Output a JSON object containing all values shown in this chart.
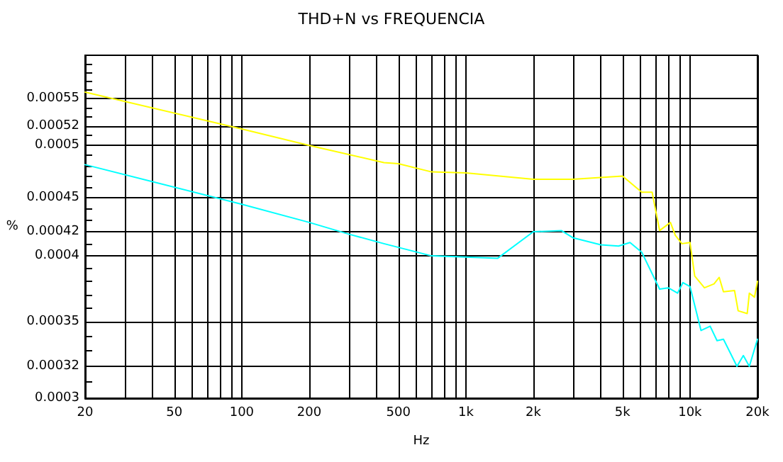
{
  "chart_data": {
    "type": "line",
    "title": "THD+N vs FREQUENCIA",
    "xlabel": "Hz",
    "ylabel": "%",
    "log": "xy",
    "grid": true,
    "marker": "none",
    "line_style": "solid",
    "xlim": [
      20,
      20000
    ],
    "xticks": [
      20,
      {
        "value": 30,
        "label": null
      },
      {
        "value": 40,
        "label": null
      },
      50,
      {
        "value": 60,
        "label": null
      },
      {
        "value": 70,
        "label": null
      },
      {
        "value": 80,
        "label": null
      },
      {
        "value": 90,
        "label": null
      },
      100,
      200,
      {
        "value": 300,
        "label": null
      },
      {
        "value": 400,
        "label": null
      },
      500,
      {
        "value": 600,
        "label": null
      },
      {
        "value": 700,
        "label": null
      },
      {
        "value": 800,
        "label": null
      },
      {
        "value": 900,
        "label": null
      },
      {
        "value": 1000,
        "label": "1k"
      },
      {
        "value": 2000,
        "label": "2k"
      },
      {
        "value": 3000,
        "label": null
      },
      {
        "value": 4000,
        "label": null
      },
      {
        "value": 5000,
        "label": "5k"
      },
      {
        "value": 6000,
        "label": null
      },
      {
        "value": 7000,
        "label": null
      },
      {
        "value": 8000,
        "label": null
      },
      {
        "value": 9000,
        "label": null
      },
      {
        "value": 10000,
        "label": "10k"
      },
      {
        "value": 20000,
        "label": "20k"
      }
    ],
    "ylim": [
      0.0003,
      0.0006
    ],
    "yticks": [
      0.0003,
      {
        "value": 0.00031,
        "label": null
      },
      0.00032,
      {
        "value": 0.00033,
        "label": null
      },
      {
        "value": 0.00034,
        "label": null
      },
      0.00035,
      {
        "value": 0.00036,
        "label": null
      },
      {
        "value": 0.00037,
        "label": null
      },
      {
        "value": 0.00038,
        "label": null
      },
      {
        "value": 0.00039,
        "label": null
      },
      0.0004,
      {
        "value": 0.00041,
        "label": null
      },
      0.00042,
      {
        "value": 0.00043,
        "label": null
      },
      {
        "value": 0.00044,
        "label": null
      },
      0.00045,
      {
        "value": 0.00046,
        "label": null
      },
      {
        "value": 0.00047,
        "label": null
      },
      {
        "value": 0.00048,
        "label": null
      },
      {
        "value": 0.00049,
        "label": null
      },
      0.0005,
      {
        "value": 0.00051,
        "label": null
      },
      0.00052,
      {
        "value": 0.00053,
        "label": null
      },
      {
        "value": 0.00054,
        "label": null
      },
      0.00055,
      {
        "value": 0.00056,
        "label": null
      },
      {
        "value": 0.00057,
        "label": null
      },
      {
        "value": 0.00058,
        "label": null
      },
      {
        "value": 0.00059,
        "label": null
      }
    ],
    "series": [
      {
        "color": "#ffff00",
        "x": [
          20,
          100,
          200,
          431,
          500,
          703,
          1000,
          2000,
          3000,
          5000,
          6090,
          6775,
          7318,
          8178,
          8600,
          9200,
          10000,
          10500,
          11600,
          12800,
          13500,
          14100,
          15800,
          16400,
          18000,
          18400,
          19400,
          20000
        ],
        "values": [
          0.000557,
          0.000517,
          0.0005,
          0.000483,
          0.000482,
          0.000474,
          0.000473,
          0.000467,
          0.000467,
          0.00047,
          0.000455,
          0.000455,
          0.000421,
          0.000428,
          0.000417,
          0.00041,
          0.000411,
          0.000384,
          0.000375,
          0.000378,
          0.000383,
          0.000372,
          0.000373,
          0.000358,
          0.000356,
          0.000371,
          0.000368,
          0.00038
        ]
      },
      {
        "color": "#00ffff",
        "x": [
          20,
          100,
          200,
          300,
          431,
          703,
          1000,
          1384,
          2000,
          2666,
          3000,
          4000,
          4800,
          5400,
          6090,
          7318,
          8000,
          8800,
          9300,
          10000,
          11200,
          12300,
          13200,
          14100,
          16200,
          17300,
          18400,
          20000
        ],
        "values": [
          0.000481,
          0.000444,
          0.000428,
          0.000418,
          0.00041,
          0.0004,
          0.000399,
          0.000398,
          0.00042,
          0.000421,
          0.000415,
          0.000409,
          0.000408,
          0.000411,
          0.000403,
          0.000374,
          0.000375,
          0.000371,
          0.000379,
          0.000376,
          0.000344,
          0.000347,
          0.000337,
          0.000338,
          0.00032,
          0.000327,
          0.00032,
          0.000338
        ]
      }
    ]
  }
}
